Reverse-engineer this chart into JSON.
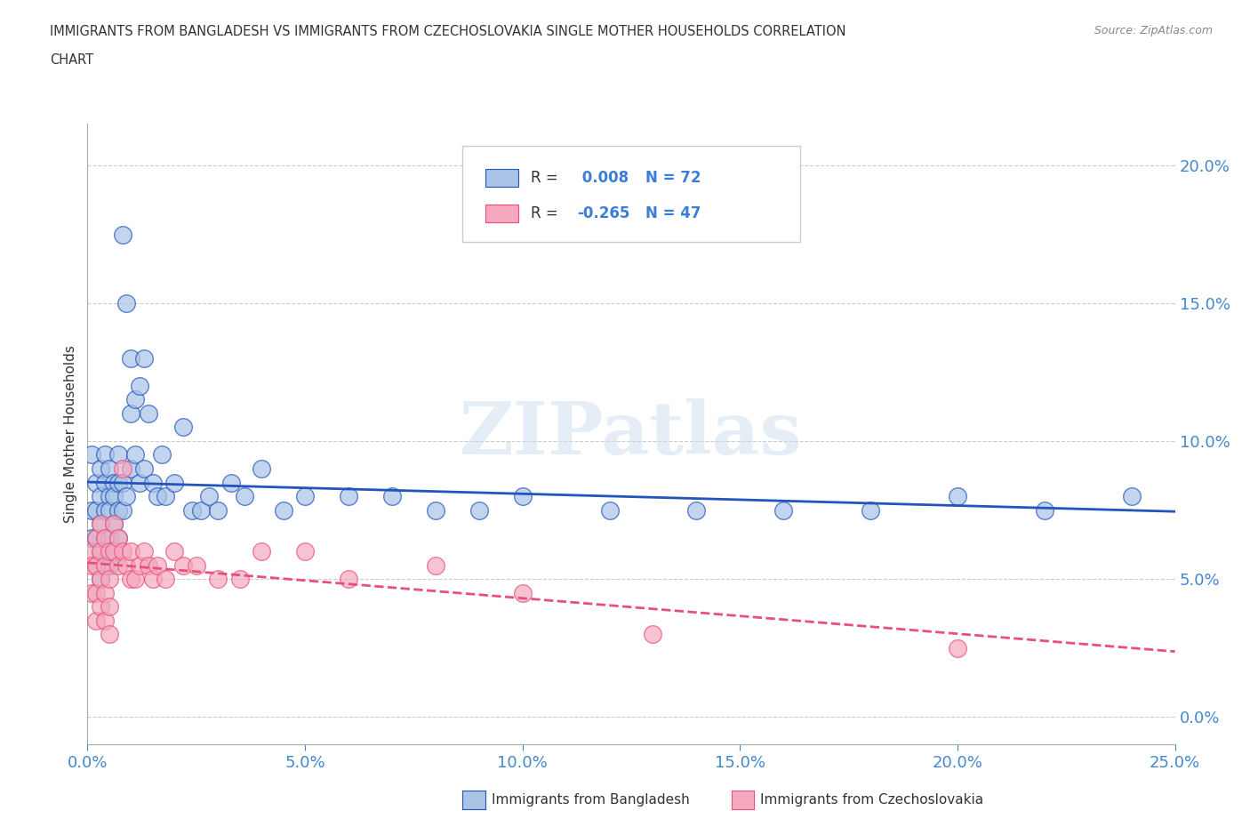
{
  "title_line1": "IMMIGRANTS FROM BANGLADESH VS IMMIGRANTS FROM CZECHOSLOVAKIA SINGLE MOTHER HOUSEHOLDS CORRELATION",
  "title_line2": "CHART",
  "source": "Source: ZipAtlas.com",
  "ylabel": "Single Mother Households",
  "xlim": [
    0.0,
    0.25
  ],
  "ylim": [
    -0.01,
    0.215
  ],
  "bangladesh_color": "#aac4e8",
  "czechoslovakia_color": "#f5a8be",
  "bangladesh_line_color": "#2255bb",
  "czechoslovakia_line_color": "#e8507a",
  "R_bangladesh": 0.008,
  "N_bangladesh": 72,
  "R_czechoslovakia": -0.265,
  "N_czechoslovakia": 47,
  "background_color": "#ffffff",
  "watermark_text": "ZIPatlas",
  "grid_color": "#cccccc",
  "bangladesh_x": [
    0.001,
    0.001,
    0.001,
    0.002,
    0.002,
    0.002,
    0.002,
    0.003,
    0.003,
    0.003,
    0.003,
    0.003,
    0.004,
    0.004,
    0.004,
    0.004,
    0.004,
    0.005,
    0.005,
    0.005,
    0.005,
    0.005,
    0.006,
    0.006,
    0.006,
    0.006,
    0.007,
    0.007,
    0.007,
    0.007,
    0.008,
    0.008,
    0.008,
    0.009,
    0.009,
    0.01,
    0.01,
    0.01,
    0.011,
    0.011,
    0.012,
    0.012,
    0.013,
    0.013,
    0.014,
    0.015,
    0.016,
    0.017,
    0.018,
    0.02,
    0.022,
    0.024,
    0.026,
    0.028,
    0.03,
    0.033,
    0.036,
    0.04,
    0.045,
    0.05,
    0.06,
    0.07,
    0.08,
    0.09,
    0.1,
    0.12,
    0.14,
    0.16,
    0.18,
    0.2,
    0.22,
    0.24
  ],
  "bangladesh_y": [
    0.095,
    0.075,
    0.065,
    0.085,
    0.075,
    0.065,
    0.055,
    0.09,
    0.08,
    0.07,
    0.06,
    0.05,
    0.095,
    0.085,
    0.075,
    0.065,
    0.055,
    0.09,
    0.08,
    0.075,
    0.065,
    0.055,
    0.085,
    0.08,
    0.07,
    0.06,
    0.095,
    0.085,
    0.075,
    0.065,
    0.175,
    0.085,
    0.075,
    0.15,
    0.08,
    0.13,
    0.11,
    0.09,
    0.115,
    0.095,
    0.12,
    0.085,
    0.13,
    0.09,
    0.11,
    0.085,
    0.08,
    0.095,
    0.08,
    0.085,
    0.105,
    0.075,
    0.075,
    0.08,
    0.075,
    0.085,
    0.08,
    0.09,
    0.075,
    0.08,
    0.08,
    0.08,
    0.075,
    0.075,
    0.08,
    0.075,
    0.075,
    0.075,
    0.075,
    0.08,
    0.075,
    0.08
  ],
  "czechoslovakia_x": [
    0.001,
    0.001,
    0.001,
    0.002,
    0.002,
    0.002,
    0.002,
    0.003,
    0.003,
    0.003,
    0.003,
    0.004,
    0.004,
    0.004,
    0.004,
    0.005,
    0.005,
    0.005,
    0.005,
    0.006,
    0.006,
    0.007,
    0.007,
    0.008,
    0.008,
    0.009,
    0.01,
    0.01,
    0.011,
    0.012,
    0.013,
    0.014,
    0.015,
    0.016,
    0.018,
    0.02,
    0.022,
    0.025,
    0.03,
    0.035,
    0.04,
    0.05,
    0.06,
    0.08,
    0.1,
    0.13,
    0.2
  ],
  "czechoslovakia_y": [
    0.06,
    0.055,
    0.045,
    0.065,
    0.055,
    0.045,
    0.035,
    0.07,
    0.06,
    0.05,
    0.04,
    0.065,
    0.055,
    0.045,
    0.035,
    0.06,
    0.05,
    0.04,
    0.03,
    0.07,
    0.06,
    0.065,
    0.055,
    0.09,
    0.06,
    0.055,
    0.06,
    0.05,
    0.05,
    0.055,
    0.06,
    0.055,
    0.05,
    0.055,
    0.05,
    0.06,
    0.055,
    0.055,
    0.05,
    0.05,
    0.06,
    0.06,
    0.05,
    0.055,
    0.045,
    0.03,
    0.025
  ]
}
